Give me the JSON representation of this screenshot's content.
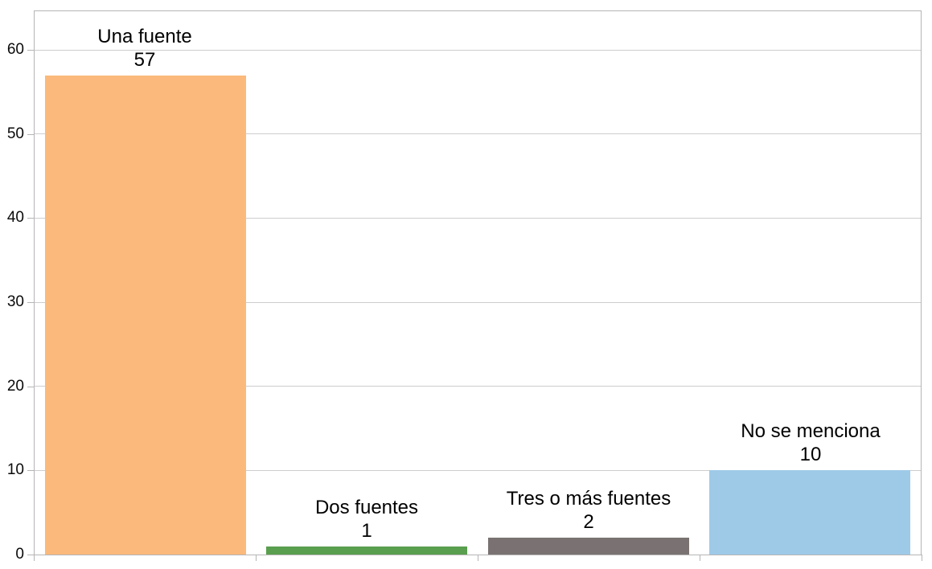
{
  "chart_data": {
    "type": "bar",
    "categories": [
      "Una fuente",
      "Dos fuentes",
      "Tres o más fuentes",
      "No se menciona"
    ],
    "values": [
      57,
      1,
      2,
      10
    ],
    "bar_colors": [
      "#fbb97b",
      "#5a9e4f",
      "#7a7272",
      "#9ecae8"
    ],
    "data_labels": "category name and value displayed above each bar",
    "title": "",
    "xlabel": "",
    "ylabel": "",
    "ylim": [
      0,
      65
    ],
    "yticks": [
      0,
      10,
      20,
      30,
      40,
      50,
      60
    ],
    "grid": "horizontal gridlines at y ticks",
    "legend": "none"
  },
  "style_colors": {
    "background": "#ffffff",
    "gridline": "#cdcdcd",
    "frame": "#b5b5b5",
    "text": "#000000"
  }
}
